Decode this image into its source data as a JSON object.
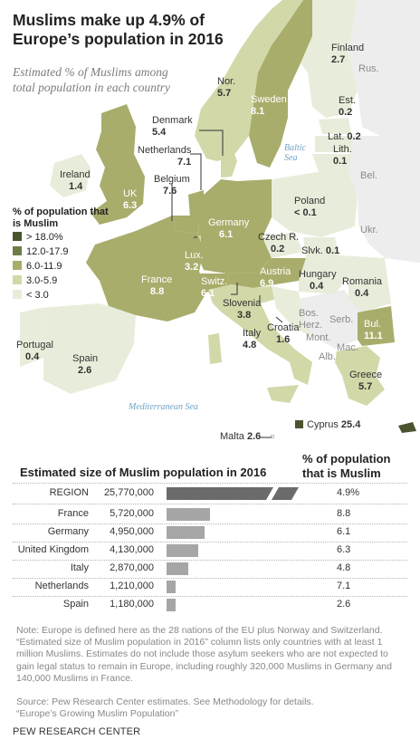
{
  "title": "Muslims make up 4.9% of Europe’s population in 2016",
  "subtitle": "Estimated % of Muslims among total population in each country",
  "colors": {
    "c1": "#4a5530",
    "c2": "#6f7c46",
    "c3": "#a9ad6b",
    "c4": "#d2d8a8",
    "c5": "#e8eddb",
    "nonEU": "#ededed",
    "sea": "#ffffff",
    "bar": "#a6a6a6",
    "bar_region": "#6b6b6b"
  },
  "legend": {
    "title": "% of population that is Muslim",
    "items": [
      {
        "label": "> 18.0%",
        "color": "#4a5530"
      },
      {
        "label": "12.0-17.9",
        "color": "#6f7c46"
      },
      {
        "label": "6.0-11.9",
        "color": "#a9ad6b"
      },
      {
        "label": "3.0-5.9",
        "color": "#d2d8a8"
      },
      {
        "label": "< 3.0",
        "color": "#e8eddb"
      }
    ]
  },
  "countries": [
    {
      "name": "Finland",
      "value": "2.7"
    },
    {
      "name": "Nor.",
      "value": "5.7"
    },
    {
      "name": "Sweden",
      "value": "8.1"
    },
    {
      "name": "Est.",
      "value": "0.2"
    },
    {
      "name": "Lat.",
      "value": "0.2"
    },
    {
      "name": "Lith.",
      "value": "0.1"
    },
    {
      "name": "Denmark",
      "value": "5.4"
    },
    {
      "name": "Netherlands",
      "value": "7.1"
    },
    {
      "name": "Belgium",
      "value": "7.6"
    },
    {
      "name": "Ireland",
      "value": "1.4"
    },
    {
      "name": "UK",
      "value": "6.3"
    },
    {
      "name": "Poland",
      "value": "< 0.1"
    },
    {
      "name": "Germany",
      "value": "6.1"
    },
    {
      "name": "Lux.",
      "value": "3.2"
    },
    {
      "name": "Czech R.",
      "value": "0.2"
    },
    {
      "name": "Slvk.",
      "value": "0.1"
    },
    {
      "name": "Austria",
      "value": "6.9"
    },
    {
      "name": "Hungary",
      "value": "0.4"
    },
    {
      "name": "Romania",
      "value": "0.4"
    },
    {
      "name": "France",
      "value": "8.8"
    },
    {
      "name": "Switz.",
      "value": "6.1"
    },
    {
      "name": "Slovenia",
      "value": "3.8"
    },
    {
      "name": "Croatia",
      "value": "1.6"
    },
    {
      "name": "Italy",
      "value": "4.8"
    },
    {
      "name": "Bul.",
      "value": "11.1"
    },
    {
      "name": "Portugal",
      "value": "0.4"
    },
    {
      "name": "Spain",
      "value": "2.6"
    },
    {
      "name": "Greece",
      "value": "5.7"
    },
    {
      "name": "Cyprus",
      "value": "25.4"
    },
    {
      "name": "Malta",
      "value": "2.6"
    }
  ],
  "non_eu_labels": {
    "rus": "Rus.",
    "bel": "Bel.",
    "ukr": "Ukr.",
    "bos": "Bos.",
    "herz": "Herz.",
    "serb": "Serb.",
    "mont": "Mont.",
    "mac": "Mac.",
    "alb": "Alb."
  },
  "seas": {
    "baltic": "Baltic Sea",
    "med": "Mediterranean Sea"
  },
  "table": {
    "title": "Estimated size of Muslim population in 2016",
    "pct_header": "% of population that is Muslim",
    "rows": [
      {
        "name": "REGION",
        "count": "25,770,000",
        "value": 25770000,
        "pct": "4.9%"
      },
      {
        "name": "France",
        "count": "5,720,000",
        "value": 5720000,
        "pct": "8.8"
      },
      {
        "name": "Germany",
        "count": "4,950,000",
        "value": 4950000,
        "pct": "6.1"
      },
      {
        "name": "United Kingdom",
        "count": "4,130,000",
        "value": 4130000,
        "pct": "6.3"
      },
      {
        "name": "Italy",
        "count": "2,870,000",
        "value": 2870000,
        "pct": "4.8"
      },
      {
        "name": "Netherlands",
        "count": "1,210,000",
        "value": 1210000,
        "pct": "7.1"
      },
      {
        "name": "Spain",
        "count": "1,180,000",
        "value": 1180000,
        "pct": "2.6"
      }
    ]
  },
  "note": "Note: Europe is defined here as the 28 nations of the EU plus Norway and Switzerland. “Estimated size of Muslim population in 2016” column lists only countries with at least 1 million Muslims. Estimates do not include those asylum seekers who are not expected to gain legal status to remain in Europe, including roughly 320,000 Muslims in Germany and 140,000 Muslims in France.",
  "source": "Source: Pew Research Center estimates. See Methodology for details.",
  "report": "“Europe’s Growing Muslim Population”",
  "brand": "PEW RESEARCH CENTER"
}
